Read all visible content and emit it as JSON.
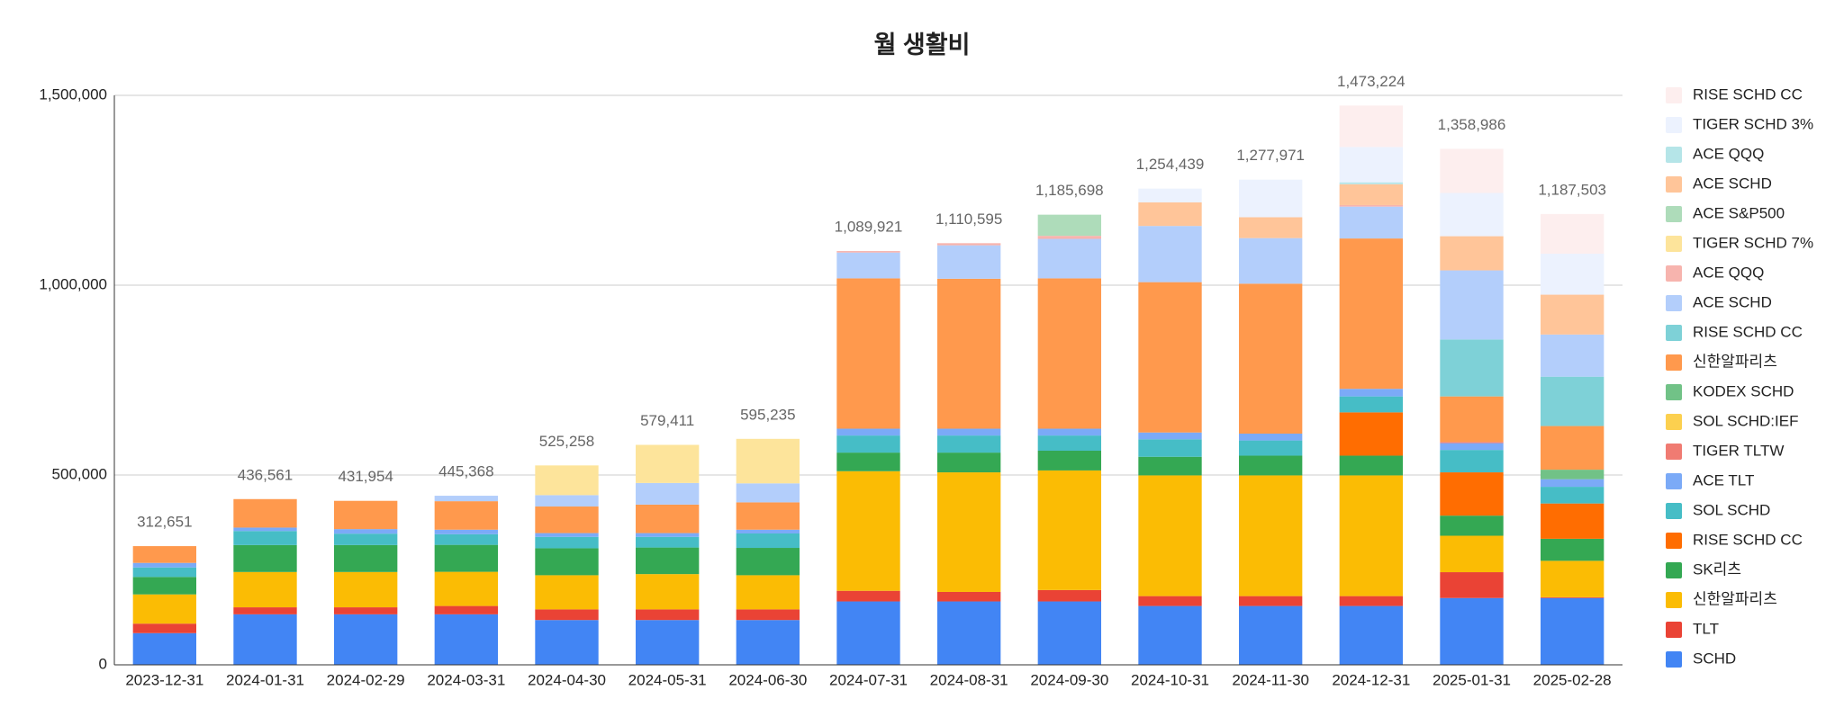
{
  "chart_data": {
    "type": "stacked_bar",
    "title": "월 생활비",
    "categories": [
      "2023-12-31",
      "2024-01-31",
      "2024-02-29",
      "2024-03-31",
      "2024-04-30",
      "2024-05-31",
      "2024-06-30",
      "2024-07-31",
      "2024-08-31",
      "2024-09-30",
      "2024-10-31",
      "2024-11-30",
      "2024-12-31",
      "2025-01-31",
      "2025-02-28"
    ],
    "series": [
      {
        "name": "SCHD",
        "color": "#4285f4",
        "values": [
          83500,
          133000,
          133000,
          133000,
          118000,
          118000,
          118000,
          167000,
          167000,
          167000,
          155000,
          155000,
          155000,
          176000,
          176000
        ]
      },
      {
        "name": "TLT",
        "color": "#ea4335",
        "values": [
          25000,
          18500,
          18500,
          22000,
          28000,
          28000,
          28000,
          28000,
          25000,
          30000,
          26000,
          26000,
          26000,
          68000,
          2000
        ]
      },
      {
        "name": "신한알파리츠",
        "color": "#fbbc04",
        "values": [
          77000,
          93000,
          93000,
          90000,
          90000,
          93000,
          90000,
          315000,
          315000,
          315000,
          318000,
          318000,
          318000,
          96000,
          96000
        ]
      },
      {
        "name": "SK리츠",
        "color": "#34a853",
        "values": [
          46000,
          71000,
          71000,
          71000,
          71000,
          70000,
          72000,
          49000,
          52000,
          52000,
          49000,
          52000,
          52000,
          53000,
          58000
        ]
      },
      {
        "name": "RISE SCHD CC",
        "color": "#ff6d01",
        "values": [
          null,
          null,
          null,
          null,
          null,
          null,
          null,
          null,
          null,
          null,
          null,
          null,
          114000,
          114000,
          93000
        ]
      },
      {
        "name": "SOL SCHD",
        "color": "#46bdc6",
        "values": [
          25000,
          37000,
          30000,
          28000,
          30000,
          28000,
          38000,
          45000,
          45000,
          40000,
          46000,
          40000,
          42000,
          59000,
          44000
        ]
      },
      {
        "name": "ACE TLT",
        "color": "#7baaf7",
        "values": [
          12000,
          9000,
          12000,
          12000,
          10000,
          10000,
          10000,
          18000,
          18000,
          18000,
          18000,
          18000,
          20000,
          18000,
          20000
        ]
      },
      {
        "name": "TIGER TLTW",
        "color": "#f07b72",
        "values": [
          null,
          null,
          null,
          null,
          null,
          null,
          null,
          null,
          null,
          null,
          null,
          null,
          null,
          3000,
          null
        ]
      },
      {
        "name": "SOL SCHD:IEF",
        "color": "#fcd04f",
        "values": [
          null,
          null,
          null,
          null,
          null,
          null,
          null,
          null,
          null,
          null,
          null,
          null,
          null,
          null,
          null
        ]
      },
      {
        "name": "KODEX SCHD",
        "color": "#71c287",
        "values": [
          null,
          null,
          null,
          null,
          null,
          null,
          null,
          null,
          null,
          null,
          null,
          null,
          null,
          null,
          25000
        ]
      },
      {
        "name": "신한알파리츠",
        "color": "#ff994d",
        "values": [
          44151,
          75061,
          74454,
          75000,
          70000,
          75000,
          72000,
          396000,
          395000,
          396000,
          396000,
          395000,
          396000,
          120000,
          115000
        ]
      },
      {
        "name": "RISE SCHD CC",
        "color": "#7ed1d7",
        "values": [
          null,
          null,
          null,
          null,
          null,
          null,
          null,
          null,
          null,
          null,
          null,
          null,
          null,
          150000,
          130000
        ]
      },
      {
        "name": "ACE SCHD",
        "color": "#b3cefb",
        "values": [
          null,
          null,
          null,
          14368,
          30000,
          57000,
          50000,
          68000,
          88000,
          104000,
          148000,
          120000,
          84000,
          182000,
          111000
        ]
      },
      {
        "name": "ACE QQQ",
        "color": "#f7b4ae",
        "values": [
          null,
          null,
          null,
          null,
          null,
          null,
          null,
          3921,
          5595,
          8000,
          null,
          null,
          4000,
          null,
          null
        ]
      },
      {
        "name": "TIGER SCHD 7%",
        "color": "#fde49b",
        "values": [
          null,
          null,
          null,
          null,
          78258,
          100411,
          117235,
          null,
          null,
          null,
          null,
          null,
          null,
          null,
          null
        ]
      },
      {
        "name": "ACE S&P500",
        "color": "#aedcba",
        "values": [
          null,
          null,
          null,
          null,
          null,
          null,
          null,
          null,
          null,
          55698,
          null,
          null,
          null,
          null,
          null
        ]
      },
      {
        "name": "ACE SCHD",
        "color": "#ffc599",
        "values": [
          null,
          null,
          null,
          null,
          null,
          null,
          null,
          null,
          null,
          null,
          62000,
          55000,
          55000,
          90000,
          105000
        ]
      },
      {
        "name": "ACE QQQ",
        "color": "#b5e5e8",
        "values": [
          null,
          null,
          null,
          null,
          null,
          null,
          null,
          null,
          null,
          null,
          null,
          null,
          5000,
          null,
          null
        ]
      },
      {
        "name": "TIGER SCHD 3%",
        "color": "#ecf2fe",
        "values": [
          null,
          null,
          null,
          null,
          null,
          null,
          null,
          null,
          null,
          null,
          36439,
          98971,
          93000,
          114000,
          108000
        ]
      },
      {
        "name": "RISE SCHD CC",
        "color": "#fdeeee",
        "values": [
          null,
          null,
          null,
          null,
          null,
          null,
          null,
          null,
          null,
          null,
          null,
          null,
          109224,
          115986,
          104503
        ]
      }
    ],
    "totals": [
      312651,
      436561,
      431954,
      445368,
      525258,
      579411,
      595235,
      1089921,
      1110595,
      1185698,
      1254439,
      1277971,
      1473224,
      1358986,
      1187503
    ],
    "total_labels": [
      "312,651",
      "436,561",
      "431,954",
      "445,368",
      "525,258",
      "579,411",
      "595,235",
      "1,089,921",
      "1,110,595",
      "1,185,698",
      "1,254,439",
      "1,277,971",
      "1,473,224",
      "1,358,986",
      "1,187,503"
    ],
    "ylim": [
      0,
      1500000
    ],
    "yticks": [
      0,
      {
        "value": 500000,
        "label": "500,000"
      },
      {
        "value": 1000000,
        "label": "1,000,000"
      },
      {
        "value": 1500000,
        "label": "1,500,000"
      }
    ],
    "grid": true,
    "legend": "right"
  }
}
